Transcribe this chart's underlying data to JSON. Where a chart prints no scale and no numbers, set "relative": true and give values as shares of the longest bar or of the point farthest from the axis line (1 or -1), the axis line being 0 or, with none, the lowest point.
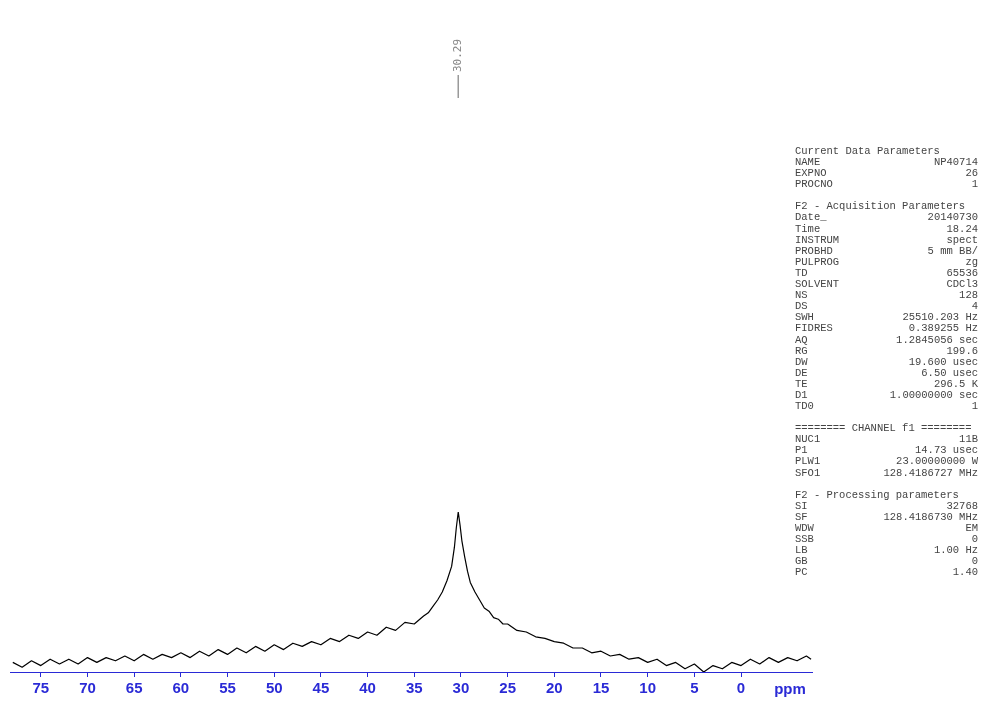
{
  "chart_data": {
    "type": "line",
    "relative": true,
    "xlabel": "ppm",
    "marker": "none",
    "line_style": "solid",
    "grid": false,
    "legend": false,
    "x": [
      78,
      77,
      76,
      75,
      74,
      73,
      72,
      71,
      70,
      69,
      68,
      67,
      66,
      65,
      64,
      63,
      62,
      61,
      60,
      59,
      58,
      57,
      56,
      55,
      54,
      53,
      52,
      51,
      50,
      49,
      48,
      47,
      46,
      45,
      44,
      43,
      42,
      41,
      40,
      39,
      38,
      37,
      36,
      35,
      34,
      33.5,
      33,
      32.5,
      32,
      31.5,
      31,
      30.7,
      30.5,
      30.29,
      30.1,
      29.9,
      29.6,
      29.3,
      29,
      28.5,
      28,
      27.5,
      27,
      26.5,
      26,
      25.5,
      25,
      24,
      23,
      22,
      21,
      20,
      19,
      18,
      17,
      16,
      15,
      14,
      13,
      12,
      11,
      10,
      9,
      8,
      7,
      6,
      5,
      4,
      3,
      2,
      1,
      0,
      -1,
      -2,
      -3,
      -4,
      -5,
      -6,
      -7,
      -7.5
    ],
    "series": [
      {
        "color": "#000000",
        "values": [
          0.06,
          0.03,
          0.07,
          0.04,
          0.08,
          0.05,
          0.08,
          0.05,
          0.09,
          0.06,
          0.09,
          0.07,
          0.1,
          0.07,
          0.11,
          0.08,
          0.11,
          0.09,
          0.12,
          0.09,
          0.13,
          0.1,
          0.14,
          0.11,
          0.15,
          0.12,
          0.16,
          0.13,
          0.17,
          0.14,
          0.18,
          0.16,
          0.19,
          0.17,
          0.21,
          0.19,
          0.23,
          0.21,
          0.25,
          0.23,
          0.28,
          0.26,
          0.31,
          0.3,
          0.35,
          0.37,
          0.41,
          0.45,
          0.5,
          0.57,
          0.66,
          0.78,
          0.9,
          1,
          0.92,
          0.82,
          0.72,
          0.63,
          0.56,
          0.5,
          0.45,
          0.4,
          0.38,
          0.34,
          0.33,
          0.3,
          0.3,
          0.26,
          0.25,
          0.22,
          0.21,
          0.19,
          0.18,
          0.15,
          0.15,
          0.12,
          0.13,
          0.1,
          0.11,
          0.08,
          0.09,
          0.06,
          0.08,
          0.04,
          0.06,
          0.02,
          0.05,
          0,
          0.04,
          0.02,
          0.06,
          0.04,
          0.08,
          0.05,
          0.09,
          0.06,
          0.09,
          0.07,
          0.1,
          0.08
        ]
      }
    ],
    "xlim": [
      78.3,
      -7.6
    ],
    "xticks": [
      75,
      70,
      65,
      60,
      55,
      50,
      45,
      40,
      35,
      30,
      25,
      20,
      15,
      10,
      5,
      0
    ],
    "annotations": [
      {
        "text": "30.29",
        "x": 30.29
      },
      "Current Data Parameters",
      "NAME\tNP40714",
      "EXPNO\t26",
      "PROCNO\t1",
      "F2 - Acquisition Parameters",
      "Date_\t20140730",
      "Time\t18.24",
      "INSTRUM\tspect",
      "PROBHD\t5 mm BB/",
      "PULPROG\tzg",
      "TD\t65536",
      "SOLVENT\tCDCl3",
      "NS\t128",
      "DS\t4",
      "SWH\t25510.203 Hz",
      "FIDRES\t0.389255 Hz",
      "AQ\t1.2845056 sec",
      "RG\t199.6",
      "DW\t19.600 usec",
      "DE\t6.50 usec",
      "TE\t296.5 K",
      "D1\t1.00000000 sec",
      "TD0\t1",
      "======== CHANNEL f1 ========",
      "NUC1\t11B",
      "P1\t14.73 usec",
      "PLW1\t23.00000000 W",
      "SFO1\t128.4186727 MHz",
      "F2 - Processing parameters",
      "SI\t32768",
      "SF\t128.4186730 MHz",
      "WDW\tEM",
      "SSB\t0",
      "LB\t1.00 Hz",
      "GB\t0",
      "PC\t1.40"
    ]
  }
}
